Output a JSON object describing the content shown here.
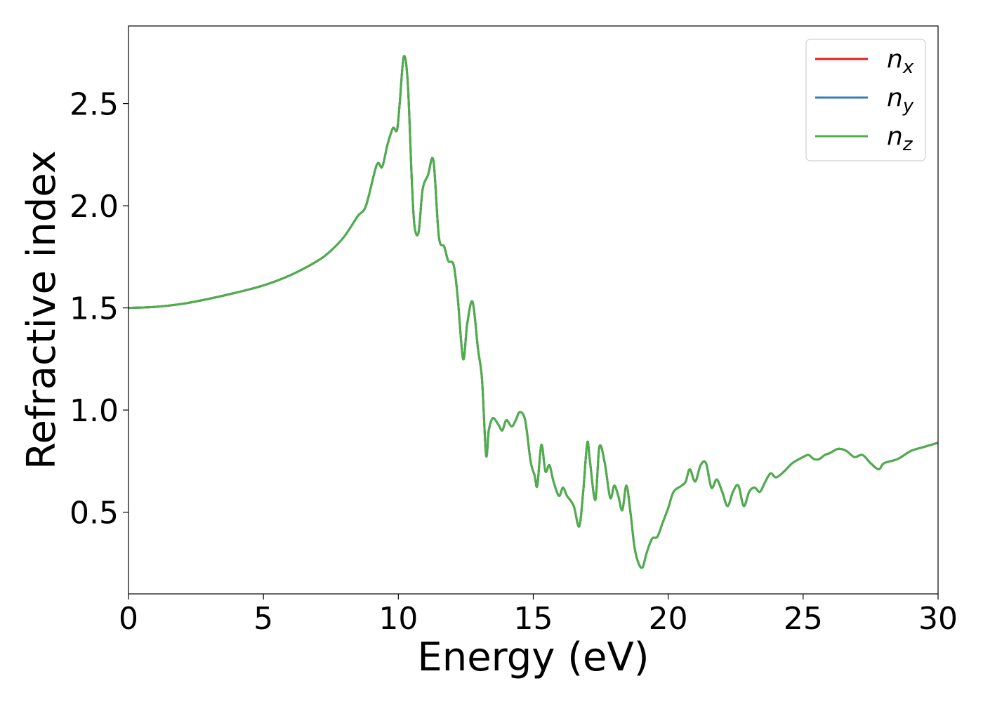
{
  "chart_data": {
    "type": "line",
    "xlabel": "Energy (eV)",
    "ylabel": "Refractive index",
    "xlim": [
      0,
      30
    ],
    "ylim": [
      0.1,
      2.88
    ],
    "xticks": [
      0,
      5,
      10,
      15,
      20,
      25,
      30
    ],
    "xtick_labels": [
      "0",
      "5",
      "10",
      "15",
      "20",
      "25",
      "30"
    ],
    "yticks": [
      0.5,
      1.0,
      1.5,
      2.0,
      2.5
    ],
    "ytick_labels": [
      "0.5",
      "1.0",
      "1.5",
      "2.0",
      "2.5"
    ],
    "grid": false,
    "legend": "top-right",
    "series": [
      {
        "name": "n_x",
        "label_base": "n",
        "label_sub": "x",
        "color": "#e41a1c"
      },
      {
        "name": "n_y",
        "label_base": "n",
        "label_sub": "y",
        "color": "#377eb8"
      },
      {
        "name": "n_z",
        "label_base": "n",
        "label_sub": "z",
        "color": "#4daf4a"
      }
    ],
    "x": [
      0,
      1,
      2,
      3,
      4,
      5,
      6,
      7,
      7.5,
      8,
      8.5,
      8.8,
      9.2,
      9.4,
      9.6,
      9.8,
      9.95,
      10.05,
      10.2,
      10.35,
      10.5,
      10.6,
      10.75,
      10.9,
      11.1,
      11.3,
      11.5,
      11.7,
      11.85,
      12.05,
      12.2,
      12.4,
      12.55,
      12.75,
      12.95,
      13.1,
      13.25,
      13.35,
      13.5,
      13.7,
      13.85,
      14.0,
      14.2,
      14.35,
      14.5,
      14.7,
      14.9,
      15.05,
      15.15,
      15.3,
      15.45,
      15.6,
      15.75,
      15.95,
      16.1,
      16.25,
      16.5,
      16.7,
      16.85,
      17.0,
      17.1,
      17.3,
      17.45,
      17.65,
      17.85,
      18.0,
      18.15,
      18.3,
      18.45,
      18.6,
      18.75,
      18.9,
      19.05,
      19.2,
      19.4,
      19.6,
      19.8,
      20.0,
      20.2,
      20.5,
      20.65,
      20.8,
      21.0,
      21.2,
      21.4,
      21.6,
      21.8,
      22.0,
      22.2,
      22.4,
      22.6,
      22.8,
      23.0,
      23.2,
      23.4,
      23.6,
      23.8,
      24.0,
      24.3,
      24.6,
      25.0,
      25.2,
      25.4,
      25.6,
      25.8,
      26.0,
      26.3,
      26.6,
      26.9,
      27.2,
      27.5,
      27.8,
      28.0,
      28.5,
      29.0,
      29.5,
      30.0
    ],
    "values": [
      1.5,
      1.505,
      1.52,
      1.545,
      1.575,
      1.61,
      1.66,
      1.73,
      1.78,
      1.85,
      1.95,
      2.0,
      2.2,
      2.19,
      2.3,
      2.38,
      2.37,
      2.5,
      2.73,
      2.6,
      2.12,
      1.9,
      1.87,
      2.08,
      2.15,
      2.22,
      1.85,
      1.8,
      1.73,
      1.71,
      1.55,
      1.25,
      1.42,
      1.53,
      1.3,
      1.15,
      0.78,
      0.9,
      0.96,
      0.93,
      0.9,
      0.95,
      0.92,
      0.95,
      0.99,
      0.95,
      0.75,
      0.68,
      0.63,
      0.83,
      0.7,
      0.73,
      0.65,
      0.58,
      0.62,
      0.58,
      0.53,
      0.43,
      0.6,
      0.84,
      0.75,
      0.56,
      0.82,
      0.74,
      0.57,
      0.63,
      0.58,
      0.51,
      0.63,
      0.5,
      0.33,
      0.25,
      0.23,
      0.3,
      0.37,
      0.38,
      0.45,
      0.52,
      0.6,
      0.63,
      0.65,
      0.71,
      0.65,
      0.73,
      0.74,
      0.62,
      0.66,
      0.6,
      0.53,
      0.6,
      0.63,
      0.53,
      0.6,
      0.62,
      0.6,
      0.65,
      0.69,
      0.67,
      0.7,
      0.74,
      0.77,
      0.78,
      0.76,
      0.76,
      0.78,
      0.79,
      0.81,
      0.8,
      0.77,
      0.78,
      0.74,
      0.71,
      0.74,
      0.76,
      0.8,
      0.82,
      0.84
    ]
  }
}
